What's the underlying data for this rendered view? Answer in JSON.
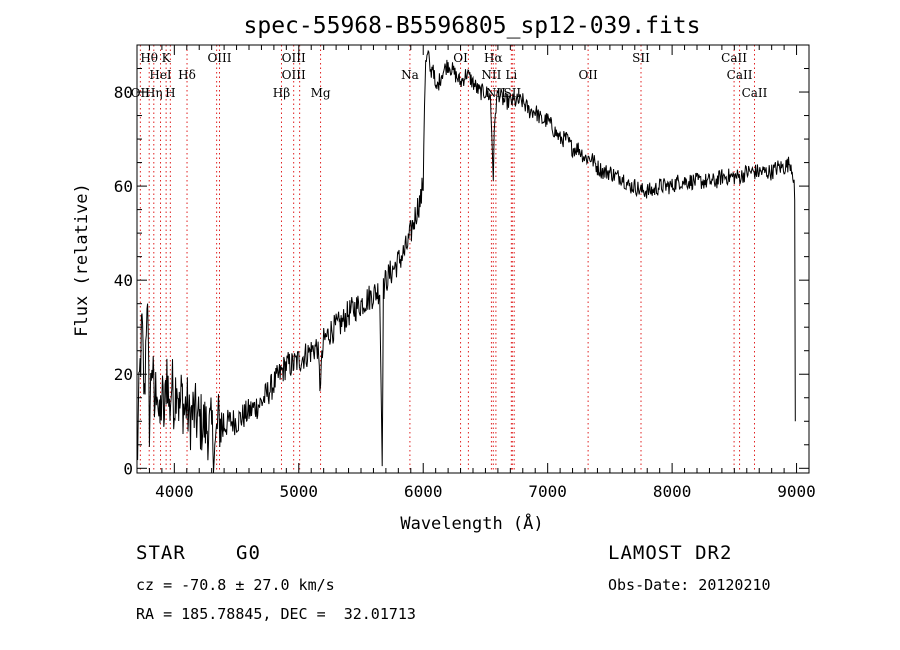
{
  "chart_data": {
    "type": "line",
    "title": "spec-55968-B5596805_sp12-039.fits",
    "xlabel": "Wavelength (Å)",
    "ylabel": "Flux (relative)",
    "xlim": [
      3700,
      9100
    ],
    "ylim": [
      -1,
      90
    ],
    "xticks": [
      4000,
      5000,
      6000,
      7000,
      8000,
      9000
    ],
    "yticks": [
      0,
      20,
      40,
      60,
      80
    ],
    "grid": false,
    "series": [
      {
        "color": "#000000",
        "x": [
          3700,
          3720,
          3740,
          3760,
          3780,
          3800,
          3820,
          3840,
          3860,
          3880,
          3900,
          3920,
          3940,
          3960,
          3980,
          4000,
          4020,
          4040,
          4060,
          4080,
          4100,
          4120,
          4150,
          4200,
          4250,
          4300,
          4330,
          4350,
          4400,
          4450,
          4500,
          4550,
          4600,
          4650,
          4700,
          4750,
          4800,
          4850,
          4900,
          4950,
          5000,
          5050,
          5100,
          5150,
          5170,
          5200,
          5250,
          5300,
          5350,
          5400,
          5450,
          5500,
          5550,
          5600,
          5650,
          5670,
          5680,
          5690,
          5700,
          5750,
          5800,
          5850,
          5880,
          5900,
          5920,
          5940,
          5960,
          5980,
          5995,
          6000,
          6010,
          6020,
          6040,
          6060,
          6080,
          6100,
          6150,
          6200,
          6250,
          6300,
          6350,
          6400,
          6450,
          6500,
          6540,
          6555,
          6563,
          6570,
          6580,
          6600,
          6650,
          6700,
          6750,
          6800,
          6850,
          6900,
          6950,
          7000,
          7050,
          7100,
          7150,
          7200,
          7250,
          7300,
          7350,
          7400,
          7450,
          7500,
          7550,
          7600,
          7650,
          7700,
          7750,
          7800,
          7850,
          7900,
          7950,
          8000,
          8050,
          8100,
          8150,
          8200,
          8250,
          8300,
          8350,
          8400,
          8450,
          8500,
          8550,
          8600,
          8650,
          8700,
          8750,
          8800,
          8850,
          8900,
          8950,
          8960,
          8970,
          8980,
          8985,
          8990
        ],
        "values": [
          0,
          18,
          30,
          14,
          38,
          10,
          24,
          12,
          20,
          8,
          16,
          10,
          22,
          12,
          18,
          14,
          20,
          12,
          16,
          12,
          14,
          10,
          12,
          10,
          9,
          8,
          4,
          10,
          9,
          10,
          10,
          11,
          12,
          13,
          14,
          16,
          18,
          20,
          22,
          22,
          23,
          24,
          25,
          26,
          18,
          27,
          29,
          30,
          31,
          33,
          34,
          35,
          36,
          37,
          38,
          3,
          38,
          39,
          40,
          42,
          44,
          46,
          48,
          50,
          52,
          54,
          56,
          57,
          60,
          60,
          78,
          86,
          88,
          84,
          86,
          80,
          84,
          86,
          84,
          82,
          84,
          82,
          80,
          80,
          79,
          68,
          62,
          70,
          76,
          80,
          78,
          78,
          78,
          78,
          76,
          76,
          74,
          74,
          72,
          70,
          70,
          68,
          68,
          66,
          66,
          64,
          63,
          63,
          62,
          62,
          60,
          60,
          59,
          59,
          59,
          60,
          60,
          60,
          61,
          61,
          61,
          61,
          61,
          61,
          61,
          62,
          62,
          62,
          62,
          63,
          63,
          63,
          63,
          63,
          64,
          64,
          65,
          64,
          63,
          61,
          57,
          10
        ]
      }
    ],
    "line_labels": [
      {
        "text": "Hθ",
        "wl": 3798,
        "row": 0
      },
      {
        "text": "K",
        "wl": 3934,
        "row": 0
      },
      {
        "text": "OIII",
        "wl": 4363,
        "row": 0
      },
      {
        "text": "OIII",
        "wl": 4959,
        "row": 0
      },
      {
        "text": "OI",
        "wl": 6300,
        "row": 0
      },
      {
        "text": "Hα",
        "wl": 6563,
        "row": 0
      },
      {
        "text": "SII",
        "wl": 7750,
        "row": 0
      },
      {
        "text": "CaII",
        "wl": 8498,
        "row": 0
      },
      {
        "text": "HeI",
        "wl": 3889,
        "row": 1
      },
      {
        "text": "Hδ",
        "wl": 4102,
        "row": 1
      },
      {
        "text": "OIII",
        "wl": 4959,
        "row": 1
      },
      {
        "text": "Na",
        "wl": 5893,
        "row": 1
      },
      {
        "text": "NII",
        "wl": 6548,
        "row": 1
      },
      {
        "text": "Li",
        "wl": 6708,
        "row": 1
      },
      {
        "text": "OII",
        "wl": 7325,
        "row": 1
      },
      {
        "text": "CaII",
        "wl": 8542,
        "row": 1
      },
      {
        "text": "OII",
        "wl": 3727,
        "row": 2
      },
      {
        "text": "Hη",
        "wl": 3835,
        "row": 2
      },
      {
        "text": "H",
        "wl": 3968,
        "row": 2
      },
      {
        "text": "Hβ",
        "wl": 4861,
        "row": 2
      },
      {
        "text": "Mg",
        "wl": 5175,
        "row": 2
      },
      {
        "text": "NII",
        "wl": 6584,
        "row": 2
      },
      {
        "text": "SII",
        "wl": 6716,
        "row": 2
      },
      {
        "text": "CaII",
        "wl": 8662,
        "row": 2
      }
    ],
    "line_markers": [
      3727,
      3798,
      3835,
      3889,
      3934,
      3968,
      4102,
      4340,
      4363,
      4861,
      4959,
      5007,
      5175,
      5893,
      6300,
      6363,
      6548,
      6563,
      6584,
      6708,
      6716,
      6731,
      7325,
      7750,
      8498,
      8542,
      8662
    ]
  },
  "info": {
    "object_class": "STAR",
    "subclass": "G0",
    "survey": "LAMOST DR2",
    "cz": "cz = -70.8 ± 27.0 km/s",
    "obs_date": "Obs-Date: 20120210",
    "coords": "RA = 185.78845, DEC =  32.01713"
  }
}
